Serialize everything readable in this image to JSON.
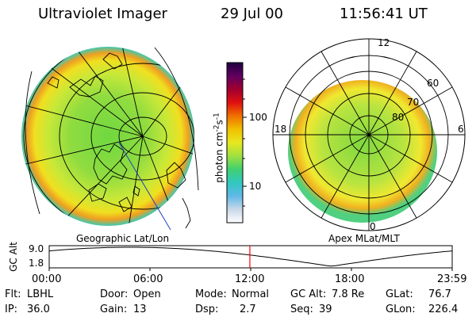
{
  "header": {
    "instrument": "Ultraviolet Imager",
    "date": "29 Jul 00",
    "time": "11:56:41 UT"
  },
  "colorbar": {
    "unit": "photon cm",
    "unit_exp1": "-2",
    "unit_mid": "s",
    "unit_exp2": "-1",
    "tick_high": "100",
    "tick_low": "10",
    "stops": [
      "#ffffff",
      "#c8d8e8",
      "#60b8e8",
      "#30c8c0",
      "#40d070",
      "#a0e040",
      "#e8e820",
      "#f0c000",
      "#f07000",
      "#e01010",
      "#a00030",
      "#600060",
      "#200040"
    ]
  },
  "left_panel": {
    "title": "Geographic Lat/Lon"
  },
  "right_panel": {
    "title": "Apex MLat/MLT",
    "mlt_labels": {
      "top": "12",
      "left": "18",
      "right": "6",
      "bottom": "0"
    },
    "lat_labels": [
      "60",
      "70",
      "80"
    ]
  },
  "altitude_plot": {
    "ylabel": "GC Alt",
    "y_top": "9.0",
    "y_bottom": "1.8",
    "x_ticks": [
      "00:00",
      "06:00",
      "12:00",
      "18:00",
      "23:59"
    ],
    "marker_time_hours": 11.95,
    "marker_color": "#ff0000"
  },
  "status": {
    "flt_label": "Flt:",
    "flt_value": "LBHL",
    "ip_label": "IP:",
    "ip_value": "36.0",
    "door_label": "Door:",
    "door_value": "Open",
    "gain_label": "Gain:",
    "gain_value": "13",
    "mode_label": "Mode:",
    "mode_value": "Normal",
    "dsp_label": "Dsp:",
    "dsp_value": "2.7",
    "gcalt_label": "GC Alt:",
    "gcalt_value": "7.8 Re",
    "seq_label": "Seq:",
    "seq_value": "39",
    "glat_label": "GLat:",
    "glat_value": "76.7",
    "glon_label": "GLon:",
    "glon_value": "226.4"
  }
}
